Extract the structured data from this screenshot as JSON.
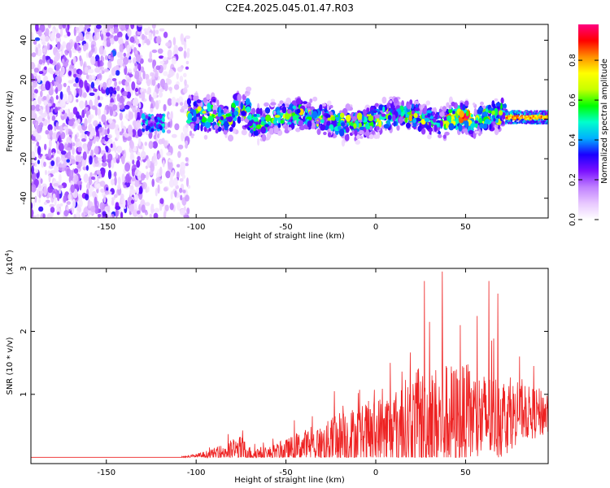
{
  "title": "C2E4.2025.045.01.47.R03",
  "chart_data": [
    {
      "type": "heatmap",
      "xlabel": "Height of straight line (km)",
      "ylabel": "Frequency (Hz)",
      "xlim": [
        -192,
        96
      ],
      "ylim": [
        -50,
        48
      ],
      "xticks": [
        -150,
        -100,
        -50,
        0,
        50
      ],
      "yticks": [
        -40,
        -20,
        0,
        20,
        40
      ],
      "colorbar": {
        "label": "Normalized spectral amplitude",
        "range": [
          0.0,
          0.98
        ],
        "ticks": [
          "0.0",
          "0.2",
          "0.4",
          "0.6",
          "0.8"
        ],
        "colors": [
          "#ffffff",
          "#e8c8ff",
          "#c080ff",
          "#7a10ff",
          "#1a00ff",
          "#00b0ff",
          "#00ffcc",
          "#00ff00",
          "#c8ff00",
          "#ffff00",
          "#ff9000",
          "#ff0000",
          "#ff0080"
        ]
      },
      "regions": [
        {
          "x_range": [
            -192,
            -130
          ],
          "f_range": [
            -50,
            48
          ],
          "amplitude": 0.12,
          "note": "diffuse noise"
        },
        {
          "x_range": [
            -130,
            -104
          ],
          "f_range": [
            -50,
            48
          ],
          "amplitude": 0.08,
          "note": "sparse noise"
        },
        {
          "x_range": [
            -104,
            72
          ],
          "f_center": 0,
          "f_halfwidth": 12,
          "amplitude": 0.35,
          "note": "main band"
        },
        {
          "x_range": [
            72,
            96
          ],
          "f_center": 1,
          "f_halfwidth": 2,
          "amplitude": 0.9,
          "note": "narrow strong line"
        }
      ]
    },
    {
      "type": "line",
      "xlabel": "Height of straight line (km)",
      "ylabel": "SNR (10 * v/v)",
      "yscale_label": "(x10",
      "yscale_exp": "4",
      "xlim": [
        -192,
        96
      ],
      "ylim": [
        -0.1,
        3.0
      ],
      "xticks": [
        -150,
        -100,
        -50,
        0,
        50
      ],
      "yticks": [
        1,
        2,
        3
      ],
      "color": "#ee2222",
      "envelope": {
        "x": [
          -192,
          -110,
          -100,
          -90,
          -80,
          -75,
          -70,
          -60,
          -50,
          -40,
          -30,
          -20,
          -10,
          0,
          10,
          20,
          30,
          40,
          50,
          60,
          70,
          80,
          96
        ],
        "base": [
          0.0,
          0.0,
          0.02,
          0.05,
          0.1,
          0.12,
          0.06,
          0.05,
          0.1,
          0.18,
          0.2,
          0.3,
          0.3,
          0.35,
          0.45,
          0.5,
          0.55,
          0.6,
          0.65,
          0.6,
          0.65,
          0.7,
          0.7
        ],
        "amp": [
          0.0,
          0.0,
          0.05,
          0.12,
          0.25,
          0.3,
          0.15,
          0.15,
          0.25,
          0.35,
          0.4,
          0.6,
          0.7,
          0.8,
          0.9,
          1.1,
          1.2,
          1.2,
          1.1,
          1.0,
          0.9,
          0.6,
          0.5
        ]
      },
      "peaks": [
        {
          "x": -23,
          "y": 1.05
        },
        {
          "x": 8,
          "y": 1.5
        },
        {
          "x": 27,
          "y": 2.8
        },
        {
          "x": 30,
          "y": 2.15
        },
        {
          "x": 37,
          "y": 2.95
        },
        {
          "x": 47,
          "y": 2.1
        },
        {
          "x": 63,
          "y": 2.8
        },
        {
          "x": 68,
          "y": 2.6
        },
        {
          "x": 80,
          "y": 1.6
        },
        {
          "x": 88,
          "y": 1.45
        }
      ]
    }
  ]
}
